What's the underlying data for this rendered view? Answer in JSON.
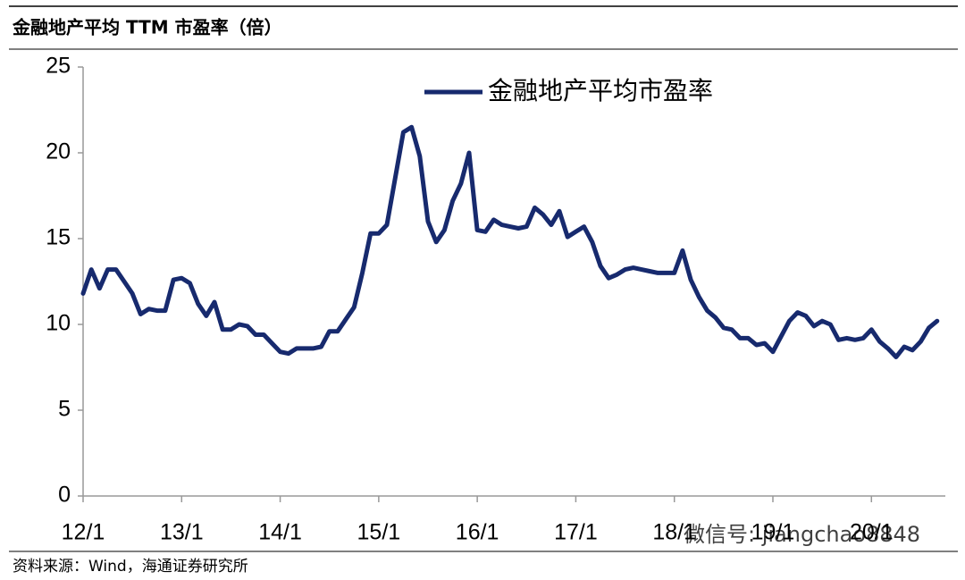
{
  "chart_data": {
    "type": "line",
    "title": "金融地产平均 TTM 市盈率（倍）",
    "source": "资料来源：Wind，海通证券研究所",
    "watermark": "微信号: jiangchao8848",
    "legend": "top",
    "grid": false,
    "x": [
      "12/1",
      "12/2",
      "12/3",
      "12/4",
      "12/5",
      "12/6",
      "12/7",
      "12/8",
      "12/9",
      "12/10",
      "12/11",
      "12/12",
      "13/1",
      "13/2",
      "13/3",
      "13/4",
      "13/5",
      "13/6",
      "13/7",
      "13/8",
      "13/9",
      "13/10",
      "13/11",
      "13/12",
      "14/1",
      "14/2",
      "14/3",
      "14/4",
      "14/5",
      "14/6",
      "14/7",
      "14/8",
      "14/9",
      "14/10",
      "14/11",
      "14/12",
      "15/1",
      "15/2",
      "15/3",
      "15/4",
      "15/5",
      "15/6",
      "15/7",
      "15/8",
      "15/9",
      "15/10",
      "15/11",
      "15/12",
      "16/1",
      "16/2",
      "16/3",
      "16/4",
      "16/5",
      "16/6",
      "16/7",
      "16/8",
      "16/9",
      "16/10",
      "16/11",
      "16/12",
      "17/1",
      "17/2",
      "17/3",
      "17/4",
      "17/5",
      "17/6",
      "17/7",
      "17/8",
      "17/9",
      "17/10",
      "17/11",
      "17/12",
      "18/1",
      "18/2",
      "18/3",
      "18/4",
      "18/5",
      "18/6",
      "18/7",
      "18/8",
      "18/9",
      "18/10",
      "18/11",
      "18/12",
      "19/1",
      "19/2",
      "19/3",
      "19/4",
      "19/5",
      "19/6",
      "19/7",
      "19/8",
      "19/9",
      "19/10",
      "19/11",
      "19/12",
      "20/1",
      "20/2",
      "20/3",
      "20/4",
      "20/5",
      "20/6",
      "20/7",
      "20/8",
      "20/9"
    ],
    "series": [
      {
        "name": "金融地产平均市盈率",
        "color": "#172a6e",
        "values": [
          11.8,
          13.2,
          12.1,
          13.2,
          13.2,
          12.5,
          11.8,
          10.6,
          10.9,
          10.8,
          10.8,
          12.6,
          12.7,
          12.4,
          11.2,
          10.5,
          11.3,
          9.7,
          9.7,
          10.0,
          9.9,
          9.4,
          9.4,
          8.9,
          8.4,
          8.3,
          8.6,
          8.6,
          8.6,
          8.7,
          9.6,
          9.6,
          10.3,
          11.0,
          13.0,
          15.3,
          15.3,
          15.8,
          18.5,
          21.2,
          21.5,
          19.8,
          16.0,
          14.8,
          15.5,
          17.2,
          18.2,
          20.0,
          15.5,
          15.4,
          16.1,
          15.8,
          15.7,
          15.6,
          15.7,
          16.8,
          16.4,
          15.8,
          16.6,
          15.1,
          15.4,
          15.7,
          14.8,
          13.4,
          12.7,
          12.9,
          13.2,
          13.3,
          13.2,
          13.1,
          13.0,
          13.0,
          13.0,
          14.3,
          12.6,
          11.6,
          10.8,
          10.4,
          9.8,
          9.7,
          9.2,
          9.2,
          8.8,
          8.9,
          8.4,
          9.3,
          10.2,
          10.7,
          10.5,
          9.9,
          10.2,
          10.0,
          9.1,
          9.2,
          9.1,
          9.2,
          9.7,
          9.0,
          8.6,
          8.1,
          8.7,
          8.5,
          9.0,
          9.8,
          10.2
        ]
      }
    ],
    "xlim": [
      "12/1",
      "20/10"
    ],
    "xticks": [
      "12/1",
      "13/1",
      "14/1",
      "15/1",
      "16/1",
      "17/1",
      "18/1",
      "19/1",
      "20/1"
    ],
    "ylim": [
      0,
      25
    ],
    "yticks": [
      0,
      5,
      10,
      15,
      20,
      25
    ]
  }
}
